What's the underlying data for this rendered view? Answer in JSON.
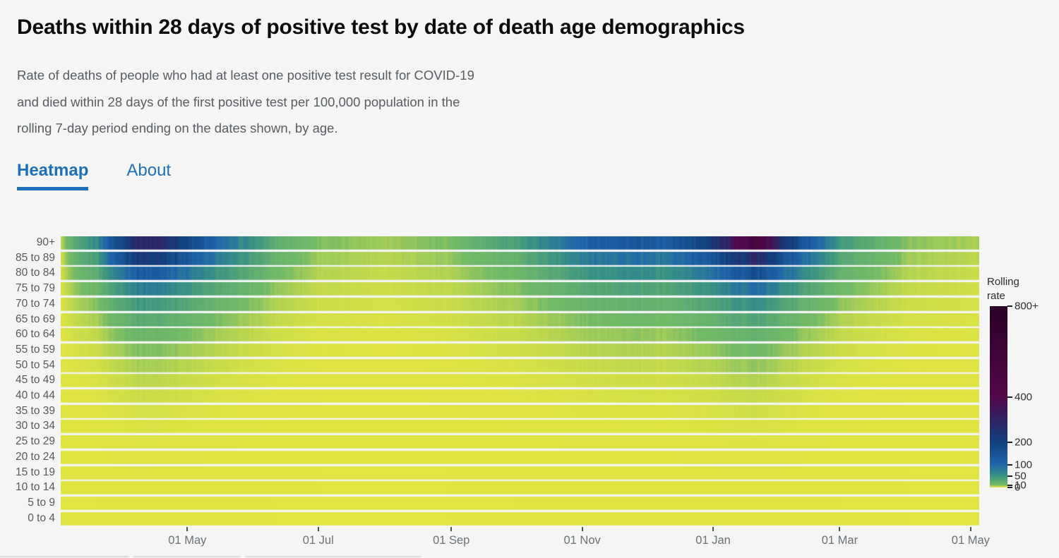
{
  "header": {
    "title": "Deaths within 28 days of positive test by date of death age demographics",
    "description_lines": [
      "Rate of deaths of people who had at least one positive test result for COVID-19",
      "and died within 28 days of the first positive test per 100,000 population in the",
      "rolling 7-day period ending on the dates shown, by age."
    ]
  },
  "tabs": [
    {
      "label": "Heatmap",
      "active": true
    },
    {
      "label": "About",
      "active": false
    }
  ],
  "colors": {
    "accent_blue": "#1d70b8",
    "title_text": "#0b0c0c",
    "secondary_text": "#585d61",
    "axis_text": "#6b7276",
    "background": "#f5f5f6"
  },
  "chart_data": {
    "type": "heatmap",
    "legend_title": "Rolling rate",
    "x_start": "2020-03-03",
    "x_end": "2021-05-05",
    "x_ticks": [
      {
        "date": "2020-05-01",
        "label": "01 May"
      },
      {
        "date": "2020-07-01",
        "label": "01 Jul"
      },
      {
        "date": "2020-09-01",
        "label": "01 Sep"
      },
      {
        "date": "2020-11-01",
        "label": "01 Nov"
      },
      {
        "date": "2021-01-01",
        "label": "01 Jan"
      },
      {
        "date": "2021-03-01",
        "label": "01 Mar"
      },
      {
        "date": "2021-05-01",
        "label": "01 May"
      }
    ],
    "categories": [
      "90+",
      "85 to 89",
      "80 to 84",
      "75 to 79",
      "70 to 74",
      "65 to 69",
      "60 to 64",
      "55 to 59",
      "50 to 54",
      "45 to 49",
      "40 to 44",
      "35 to 39",
      "30 to 34",
      "25 to 29",
      "20 to 24",
      "15 to 19",
      "10 to 14",
      "5 to 9",
      "0 to 4"
    ],
    "control_dates": [
      "2020-03-03",
      "2020-03-20",
      "2020-04-08",
      "2020-04-20",
      "2020-05-05",
      "2020-05-20",
      "2020-06-10",
      "2020-07-01",
      "2020-08-01",
      "2020-09-01",
      "2020-10-01",
      "2020-10-20",
      "2020-11-10",
      "2020-11-25",
      "2020-12-10",
      "2020-12-25",
      "2021-01-08",
      "2021-01-20",
      "2021-01-30",
      "2021-02-12",
      "2021-03-01",
      "2021-04-01",
      "2021-05-05"
    ],
    "series": [
      {
        "name": "90+",
        "values": [
          2,
          60,
          290,
          270,
          150,
          80,
          25,
          9,
          6,
          10,
          38,
          75,
          130,
          135,
          125,
          180,
          300,
          520,
          300,
          140,
          40,
          8,
          5
        ]
      },
      {
        "name": "85 to 89",
        "values": [
          1,
          40,
          230,
          210,
          110,
          60,
          18,
          6,
          4,
          7,
          20,
          50,
          85,
          88,
          80,
          120,
          190,
          280,
          190,
          95,
          28,
          6,
          3
        ]
      },
      {
        "name": "80 to 84",
        "values": [
          1,
          25,
          130,
          122,
          68,
          38,
          12,
          4,
          2.5,
          4.5,
          13,
          30,
          55,
          57,
          50,
          75,
          115,
          165,
          115,
          58,
          18,
          4,
          2
        ]
      },
      {
        "name": "75 to 79",
        "values": [
          0.6,
          15,
          74,
          70,
          40,
          22,
          7.5,
          2.5,
          1.6,
          3,
          8.5,
          18,
          32,
          34,
          30,
          45,
          68,
          95,
          66,
          34,
          11,
          2.5,
          1.3
        ]
      },
      {
        "name": "70 to 74",
        "values": [
          0.4,
          9,
          45,
          42,
          24,
          13,
          4.6,
          1.6,
          1,
          2,
          5.5,
          11,
          19,
          20,
          18,
          27,
          41,
          56,
          39,
          20,
          6.8,
          1.6,
          0.9
        ]
      },
      {
        "name": "65 to 69",
        "values": [
          0.2,
          5.2,
          26,
          24,
          14,
          7.6,
          2.8,
          1,
          0.7,
          1.3,
          3.4,
          6.6,
          11,
          12,
          10.6,
          16,
          24,
          33,
          23,
          12,
          4,
          1,
          0.6
        ]
      },
      {
        "name": "60 to 64",
        "values": [
          0.15,
          3,
          15,
          14,
          8,
          4.4,
          1.7,
          0.6,
          0.4,
          0.8,
          2.1,
          4,
          6.8,
          7.2,
          6.4,
          9.6,
          14.5,
          20,
          14,
          7,
          2.4,
          0.6,
          0.35
        ]
      },
      {
        "name": "55 to 59",
        "values": [
          0.1,
          1.8,
          9,
          8.4,
          4.9,
          2.7,
          1,
          0.37,
          0.25,
          0.5,
          1.3,
          2.4,
          4.1,
          4.4,
          3.9,
          5.9,
          8.8,
          12,
          8.4,
          4.3,
          1.5,
          0.4,
          0.2
        ]
      },
      {
        "name": "50 to 54",
        "values": [
          0.07,
          1.1,
          5.4,
          5.1,
          3,
          1.65,
          0.64,
          0.23,
          0.15,
          0.3,
          0.8,
          1.5,
          2.5,
          2.7,
          2.4,
          3.6,
          5.4,
          7.4,
          5.2,
          2.6,
          0.9,
          0.24,
          0.13
        ]
      },
      {
        "name": "45 to 49",
        "values": [
          0.04,
          0.64,
          3.2,
          3,
          1.74,
          0.97,
          0.37,
          0.13,
          0.09,
          0.18,
          0.49,
          0.88,
          1.5,
          1.6,
          1.4,
          2.1,
          3.2,
          4.3,
          3,
          1.55,
          0.54,
          0.14,
          0.08
        ]
      },
      {
        "name": "40 to 44",
        "values": [
          0.02,
          0.36,
          1.8,
          1.7,
          1,
          0.55,
          0.21,
          0.08,
          0.05,
          0.1,
          0.28,
          0.5,
          0.85,
          0.9,
          0.8,
          1.2,
          1.8,
          2.45,
          1.74,
          0.88,
          0.31,
          0.08,
          0.04
        ]
      },
      {
        "name": "35 to 39",
        "values": [
          0.01,
          0.2,
          1,
          0.95,
          0.55,
          0.3,
          0.12,
          0.04,
          0.03,
          0.06,
          0.15,
          0.28,
          0.47,
          0.5,
          0.44,
          0.67,
          1,
          1.37,
          0.97,
          0.49,
          0.17,
          0.05,
          0.03
        ]
      },
      {
        "name": "30 to 34",
        "values": [
          0.01,
          0.11,
          0.56,
          0.52,
          0.3,
          0.17,
          0.06,
          0.02,
          0.02,
          0.03,
          0.09,
          0.15,
          0.26,
          0.28,
          0.25,
          0.37,
          0.56,
          0.76,
          0.54,
          0.27,
          0.1,
          0.03,
          0.01
        ]
      },
      {
        "name": "25 to 29",
        "values": [
          0,
          0.06,
          0.3,
          0.28,
          0.17,
          0.09,
          0.04,
          0.01,
          0.01,
          0.02,
          0.05,
          0.08,
          0.14,
          0.15,
          0.13,
          0.2,
          0.31,
          0.42,
          0.3,
          0.15,
          0.05,
          0.01,
          0.01
        ]
      },
      {
        "name": "20 to 24",
        "values": [
          0,
          0.03,
          0.17,
          0.15,
          0.09,
          0.05,
          0.02,
          0.01,
          0,
          0.01,
          0.03,
          0.05,
          0.08,
          0.08,
          0.07,
          0.11,
          0.17,
          0.23,
          0.16,
          0.08,
          0.03,
          0.01,
          0
        ]
      },
      {
        "name": "15 to 19",
        "values": [
          0,
          0.02,
          0.09,
          0.08,
          0.05,
          0.03,
          0.01,
          0,
          0,
          0,
          0.01,
          0.02,
          0.04,
          0.04,
          0.04,
          0.06,
          0.09,
          0.12,
          0.09,
          0.04,
          0.02,
          0,
          0
        ]
      },
      {
        "name": "10 to 14",
        "values": [
          0,
          0.01,
          0.04,
          0.04,
          0.02,
          0.01,
          0.01,
          0,
          0,
          0,
          0.01,
          0.01,
          0.02,
          0.02,
          0.02,
          0.03,
          0.04,
          0.06,
          0.04,
          0.02,
          0.01,
          0,
          0
        ]
      },
      {
        "name": "5 to 9",
        "values": [
          0,
          0,
          0.02,
          0.02,
          0.01,
          0.01,
          0,
          0,
          0,
          0,
          0,
          0.01,
          0.01,
          0.01,
          0.01,
          0.01,
          0.02,
          0.03,
          0.02,
          0.01,
          0,
          0,
          0
        ]
      },
      {
        "name": "0 to 4",
        "values": [
          0,
          0.01,
          0.03,
          0.03,
          0.02,
          0.01,
          0,
          0,
          0,
          0,
          0.01,
          0.01,
          0.02,
          0.02,
          0.02,
          0.02,
          0.03,
          0.04,
          0.03,
          0.01,
          0.01,
          0,
          0
        ]
      }
    ],
    "color_scale": {
      "max": 800,
      "stops": [
        [
          0,
          "#e0e543"
        ],
        [
          10,
          "#74bb68"
        ],
        [
          50,
          "#399384"
        ],
        [
          100,
          "#2067AB"
        ],
        [
          200,
          "#12407F"
        ],
        [
          400,
          "#53084A"
        ],
        [
          800,
          "#2B0226"
        ]
      ]
    },
    "legend_ticks": [
      {
        "value": 800,
        "label": "800+"
      },
      {
        "value": 400,
        "label": "400"
      },
      {
        "value": 200,
        "label": "200"
      },
      {
        "value": 100,
        "label": "100"
      },
      {
        "value": 50,
        "label": "50"
      },
      {
        "value": 10,
        "label": "10"
      },
      {
        "value": 0,
        "label": "0"
      }
    ]
  }
}
